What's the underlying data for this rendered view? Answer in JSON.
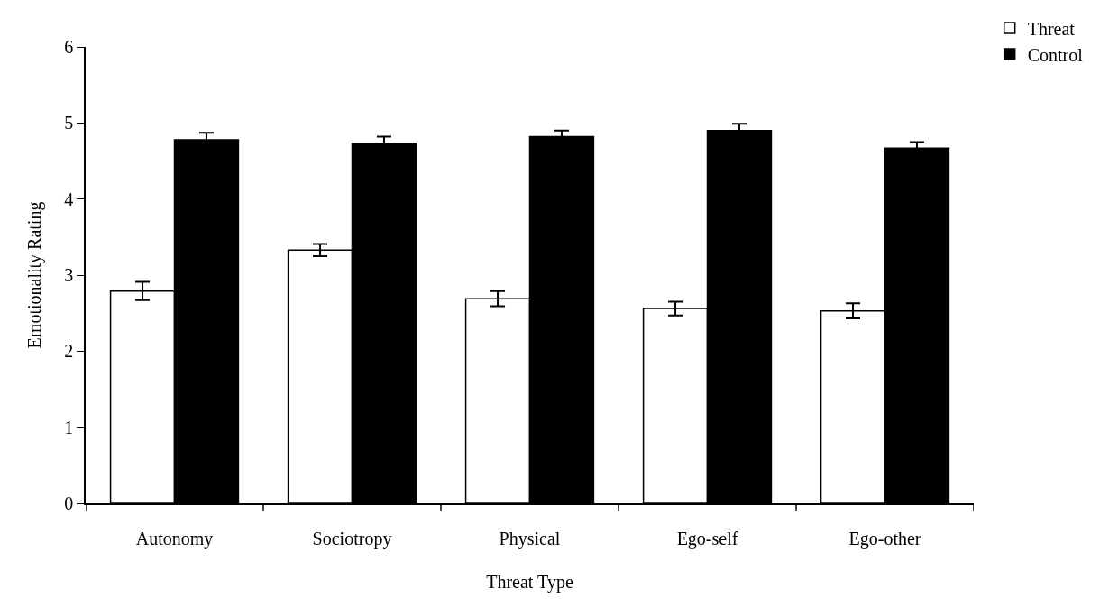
{
  "chart_data": {
    "type": "bar",
    "xlabel": "Threat Type",
    "ylabel": "Emotionality Rating",
    "categories": [
      "Autonomy",
      "Sociotropy",
      "Physical",
      "Ego-self",
      "Ego-other"
    ],
    "series": [
      {
        "name": "Threat",
        "color": "#ffffff",
        "values": [
          2.79,
          3.33,
          2.69,
          2.56,
          2.53
        ],
        "errors": [
          0.12,
          0.08,
          0.1,
          0.09,
          0.1
        ]
      },
      {
        "name": "Control",
        "color": "#000000",
        "values": [
          4.78,
          4.73,
          4.82,
          4.9,
          4.67
        ],
        "errors": [
          0.09,
          0.09,
          0.08,
          0.09,
          0.08
        ]
      }
    ],
    "ylim": [
      0,
      6
    ],
    "yticks": [
      0,
      1,
      2,
      3,
      4,
      5,
      6
    ],
    "grid": false,
    "legend": "top right"
  }
}
